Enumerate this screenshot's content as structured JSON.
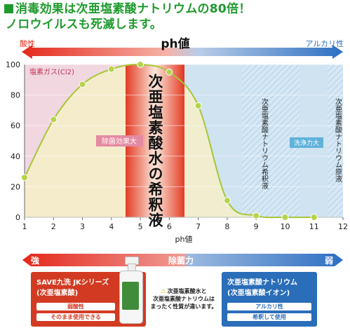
{
  "headline": {
    "line1": "消毒効果は次亜塩素酸ナトリウムの80倍！",
    "line2": "ノロウイルスも死滅します。"
  },
  "ph_bar": {
    "left": "酸性",
    "center": "ph値",
    "right": "アルカリ性"
  },
  "zones": {
    "chlorine_gas": "塩素ガス(Cl2)",
    "sterilizing": "除菌効果大",
    "hypochlorous": "次亜塩素酸水の希釈液",
    "diluted_sodium": "次亜塩素酸ナトリウム希釈液",
    "cleaning": "洗浄力大",
    "stock_sodium": "次亜塩素酸ナトリウム原液"
  },
  "chart_data": {
    "type": "line",
    "xlabel": "ph値",
    "xlim": [
      1,
      12
    ],
    "ylim": [
      0,
      100
    ],
    "x_ticks": [
      1,
      2,
      3,
      4,
      5,
      6,
      7,
      8,
      9,
      10,
      11,
      12
    ],
    "y_ticks": [
      0,
      20,
      40,
      60,
      80,
      100
    ],
    "points": [
      {
        "x": 1,
        "y": 26
      },
      {
        "x": 2,
        "y": 64
      },
      {
        "x": 3,
        "y": 87
      },
      {
        "x": 4,
        "y": 97
      },
      {
        "x": 5,
        "y": 100
      },
      {
        "x": 6,
        "y": 95
      },
      {
        "x": 7,
        "y": 73
      },
      {
        "x": 8,
        "y": 11
      },
      {
        "x": 9,
        "y": 1
      },
      {
        "x": 10,
        "y": 0
      },
      {
        "x": 11,
        "y": 0
      }
    ],
    "colors": {
      "line": "#a6c637",
      "marker": "#b6d34a"
    }
  },
  "strength_bar": {
    "left": "強",
    "center": "除菌力",
    "right": "弱"
  },
  "product_box": {
    "title": "SAVE九洗 JKシリーズ",
    "subtitle": "(次亜塩素酸)",
    "pill1": "弱酸性",
    "pill2": "そのまま使用できる"
  },
  "warning": {
    "line1": "次亜塩素酸水と",
    "line2": "次亜塩素酸ナトリウムは",
    "line3": "まったく性質が違います。"
  },
  "sodium_box": {
    "title": "次亜塩素酸ナトリウム",
    "subtitle": "(次亜塩素酸イオン)",
    "pill1": "アルカリ性",
    "pill2": "希釈して使用"
  },
  "colors": {
    "acid_red": "#e4281b",
    "alkali_blue": "#2d6fc2",
    "green_text": "#1f9a2e",
    "product_red": "#d23b22",
    "sodium_blue": "#2a6db8"
  }
}
